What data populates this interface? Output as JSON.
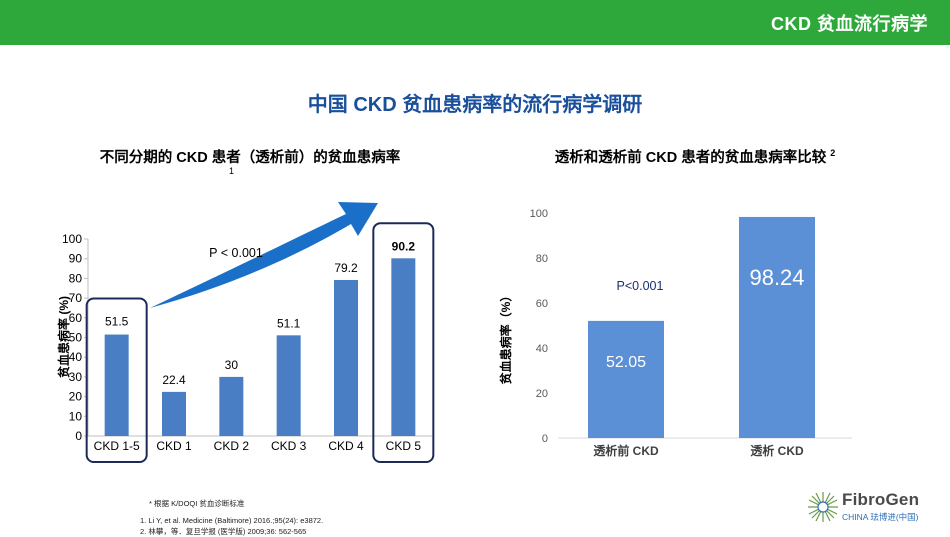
{
  "header": {
    "title": "CKD 贫血流行病学"
  },
  "main_title": "中国 CKD 贫血患病率的流行病学调研",
  "chart_data": [
    {
      "type": "bar",
      "title": "不同分期的 CKD 患者（透析前）的贫血患病率",
      "title_ref": "1",
      "categories": [
        "CKD 1-5",
        "CKD 1",
        "CKD 2",
        "CKD 3",
        "CKD 4",
        "CKD 5"
      ],
      "values": [
        51.5,
        22.4,
        30,
        51.1,
        79.2,
        90.2
      ],
      "data_labels": [
        "51.5",
        "22.4",
        "30",
        "51.1",
        "79.2",
        "90.2"
      ],
      "ylabel": "贫血患病率 (%)",
      "ylim": [
        0,
        100
      ],
      "yticks": [
        0,
        10,
        20,
        30,
        40,
        50,
        60,
        70,
        80,
        90,
        100
      ],
      "annotation": "P < 0.001",
      "highlighted": [
        "CKD 1-5",
        "CKD 5"
      ],
      "bar_color": "#4a7ec4"
    },
    {
      "type": "bar",
      "title": "透析和透析前 CKD 患者的贫血患病率比较",
      "title_ref": "2",
      "categories": [
        "透析前 CKD",
        "透析 CKD"
      ],
      "values": [
        52.05,
        98.24
      ],
      "data_labels": [
        "52.05",
        "98.24"
      ],
      "ylabel": "贫血患病率（%）",
      "ylim": [
        0,
        100
      ],
      "yticks": [
        0,
        20,
        40,
        60,
        80,
        100
      ],
      "annotation": "P<0.001",
      "bar_color": "#5b8fd6"
    }
  ],
  "footnotes": {
    "note": "* 根据 K/DOQI 贫血诊断标准",
    "ref1": "1. Li Y, et al. Medicine (Baltimore) 2016.;95(24): e3872.",
    "ref2": "2. 林攀，等．复旦学报 (医学版) 2009;36: 562-565"
  },
  "logo": {
    "name": "FibroGen",
    "sub": "CHINA 珐博进(中国)"
  },
  "colors": {
    "header": "#2ea83a",
    "title": "#1a4f9c",
    "frame": "#1c2a5a"
  }
}
